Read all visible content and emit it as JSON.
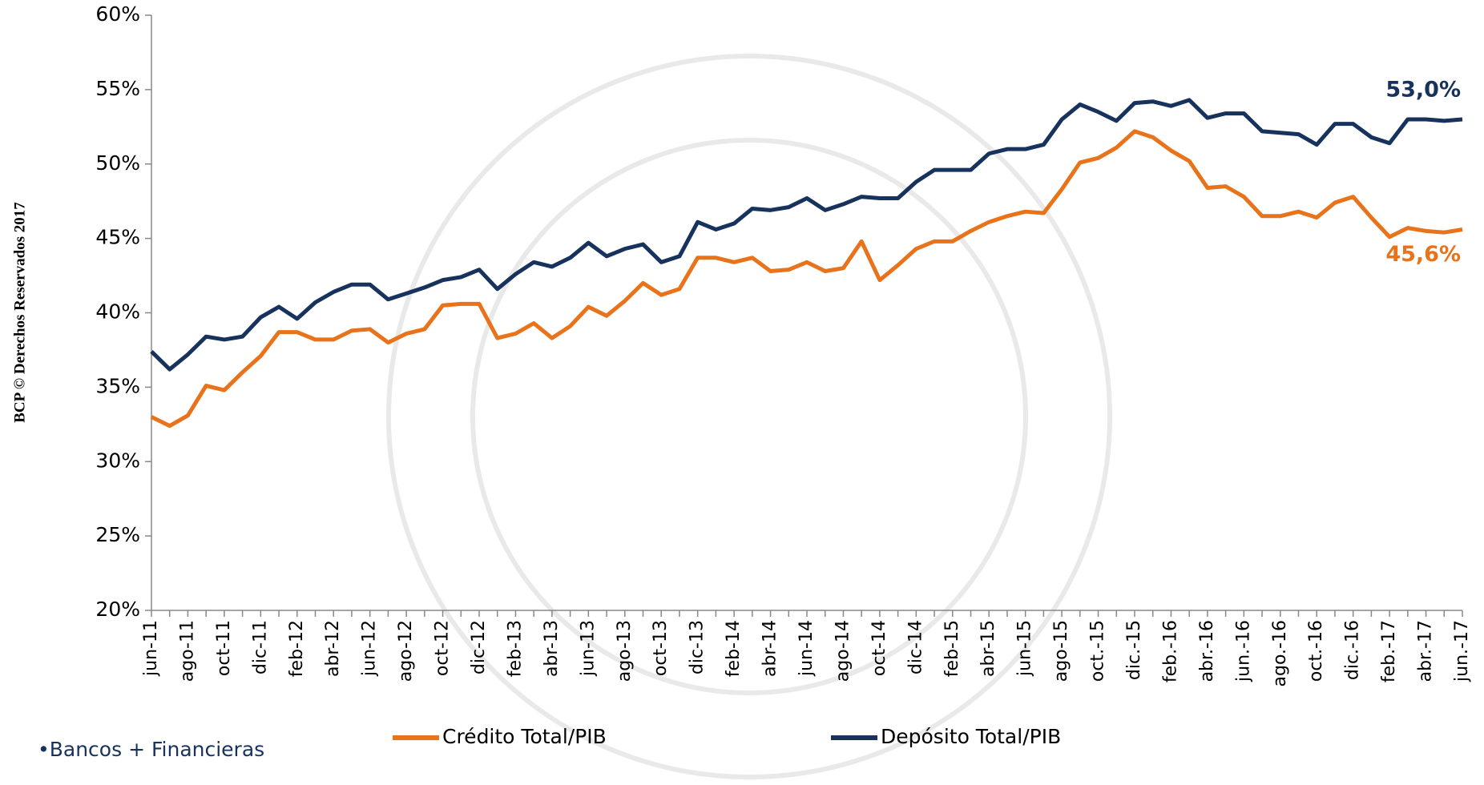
{
  "chart_data": {
    "type": "line",
    "side_note": "BCP © Derechos Reservados 2017",
    "footnote": "•Bancos + Financieras",
    "categories": [
      "jun-11",
      null,
      "ago-11",
      null,
      "oct-11",
      null,
      "dic-11",
      null,
      "feb-12",
      null,
      "abr-12",
      null,
      "jun-12",
      null,
      "ago-12",
      null,
      "oct-12",
      null,
      "dic-12",
      null,
      "feb-13",
      null,
      "abr-13",
      null,
      "jun-13",
      null,
      "ago-13",
      null,
      "oct-13",
      null,
      "dic-13",
      null,
      "feb-14",
      null,
      "abr-14",
      null,
      "jun-14",
      null,
      "ago-14",
      null,
      "oct-14",
      null,
      "dic-14",
      null,
      "feb-15",
      null,
      "abr-15",
      null,
      "jun-15",
      null,
      "ago-15",
      null,
      "oct.-15",
      null,
      "dic.-15",
      null,
      "feb.-16",
      null,
      "abr.-16",
      null,
      "jun.-16",
      null,
      "ago.-16",
      null,
      "oct.-16",
      null,
      "dic.-16",
      null,
      "feb.-17",
      null,
      "abr.-17",
      null,
      "jun.-17"
    ],
    "series": [
      {
        "name": "Crédito Total/PIB",
        "color": "#e8731a",
        "values": [
          33.0,
          32.4,
          33.1,
          35.1,
          34.8,
          36.0,
          37.1,
          38.7,
          38.7,
          38.2,
          38.2,
          38.8,
          38.9,
          38.0,
          38.6,
          38.9,
          40.5,
          40.6,
          40.6,
          38.3,
          38.6,
          39.3,
          38.3,
          39.1,
          40.4,
          39.8,
          40.8,
          42.0,
          41.2,
          41.6,
          43.7,
          43.7,
          43.4,
          43.7,
          42.8,
          42.9,
          43.4,
          42.8,
          43.0,
          44.8,
          42.2,
          43.2,
          44.3,
          44.8,
          44.8,
          45.5,
          46.1,
          46.5,
          46.8,
          46.7,
          48.3,
          50.1,
          50.4,
          51.1,
          52.2,
          51.8,
          50.9,
          50.2,
          48.4,
          48.5,
          47.8,
          46.5,
          46.5,
          46.8,
          46.4,
          47.4,
          47.8,
          46.4,
          45.1,
          45.7,
          45.5,
          45.4,
          45.6
        ],
        "end_label": "45,6%"
      },
      {
        "name": "Depósito Total/PIB",
        "color": "#17325c",
        "values": [
          37.4,
          36.2,
          37.2,
          38.4,
          38.2,
          38.4,
          39.7,
          40.4,
          39.6,
          40.7,
          41.4,
          41.9,
          41.9,
          40.9,
          41.3,
          41.7,
          42.2,
          42.4,
          42.9,
          41.6,
          42.6,
          43.4,
          43.1,
          43.7,
          44.7,
          43.8,
          44.3,
          44.6,
          43.4,
          43.8,
          46.1,
          45.6,
          46.0,
          47.0,
          46.9,
          47.1,
          47.7,
          46.9,
          47.3,
          47.8,
          47.7,
          47.7,
          48.8,
          49.6,
          49.6,
          49.6,
          50.7,
          51.0,
          51.0,
          51.3,
          53.0,
          54.0,
          53.5,
          52.9,
          54.1,
          54.2,
          53.9,
          54.3,
          53.1,
          53.4,
          53.4,
          52.2,
          52.1,
          52.0,
          51.3,
          52.7,
          52.7,
          51.8,
          51.4,
          53.0,
          53.0,
          52.9,
          53.0
        ],
        "end_label": "53,0%"
      }
    ],
    "ylim": [
      20,
      60
    ],
    "yticks": [
      {
        "value": 20,
        "label": "20%"
      },
      {
        "value": 25,
        "label": "25%"
      },
      {
        "value": 30,
        "label": "30%"
      },
      {
        "value": 35,
        "label": "35%"
      },
      {
        "value": 40,
        "label": "40%"
      },
      {
        "value": 45,
        "label": "45%"
      },
      {
        "value": 50,
        "label": "50%"
      },
      {
        "value": 55,
        "label": "55%"
      },
      {
        "value": 60,
        "label": "60%"
      }
    ]
  }
}
